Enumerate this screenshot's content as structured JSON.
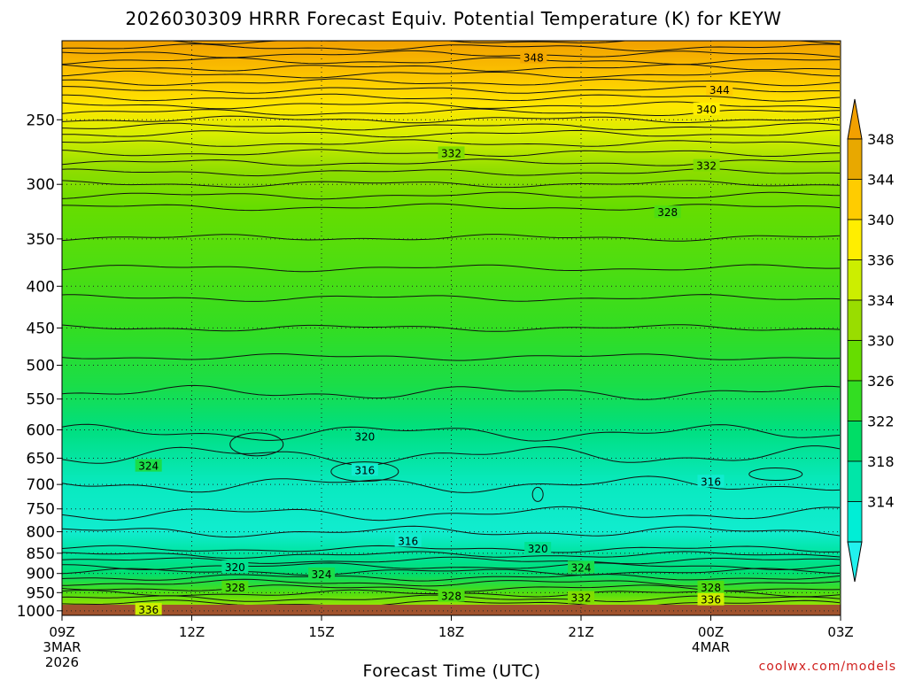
{
  "title": "2026030309 HRRR Forecast Equiv. Potential Temperature (K) for KEYW",
  "credit": "coolwx.com/models",
  "chart_data": {
    "type": "heatmap",
    "title": "2026030309 HRRR Forecast Equiv. Potential Temperature (K) for KEYW",
    "xlabel": "Forecast Time (UTC)",
    "ylabel": "",
    "x_ticks": [
      {
        "hour": 0,
        "label": "09Z",
        "sub": [
          "3MAR",
          "2026"
        ]
      },
      {
        "hour": 3,
        "label": "12Z",
        "sub": []
      },
      {
        "hour": 6,
        "label": "15Z",
        "sub": []
      },
      {
        "hour": 9,
        "label": "18Z",
        "sub": []
      },
      {
        "hour": 12,
        "label": "21Z",
        "sub": []
      },
      {
        "hour": 15,
        "label": "00Z",
        "sub": [
          "4MAR"
        ]
      },
      {
        "hour": 18,
        "label": "03Z",
        "sub": []
      }
    ],
    "xlim_hours": [
      0,
      18
    ],
    "y_ticks": [
      250,
      300,
      350,
      400,
      450,
      500,
      550,
      600,
      650,
      700,
      750,
      800,
      850,
      900,
      950,
      1000
    ],
    "ylim_hpa": [
      200,
      1013
    ],
    "y_scale": "log-pressure",
    "grid": "dotted",
    "colorbar": {
      "ticks": [
        348,
        344,
        340,
        336,
        334,
        330,
        326,
        322,
        318,
        314
      ],
      "colors": [
        "#e8a800",
        "#ffcc00",
        "#ffee00",
        "#ccee00",
        "#99dd00",
        "#66dd00",
        "#33dd22",
        "#00dd66",
        "#00e6a8",
        "#00eed6"
      ],
      "top_color": "#f2a000",
      "bottom_color": "#22f2ee"
    },
    "ground_color": "#a0522d",
    "profile": [
      {
        "p": 200,
        "theta_e": 350
      },
      {
        "p": 220,
        "theta_e": 345
      },
      {
        "p": 240,
        "theta_e": 341
      },
      {
        "p": 260,
        "theta_e": 337
      },
      {
        "p": 290,
        "theta_e": 333
      },
      {
        "p": 320,
        "theta_e": 330
      },
      {
        "p": 380,
        "theta_e": 328
      },
      {
        "p": 450,
        "theta_e": 326
      },
      {
        "p": 530,
        "theta_e": 324
      },
      {
        "p": 600,
        "theta_e": 321
      },
      {
        "p": 700,
        "theta_e": 317
      },
      {
        "p": 800,
        "theta_e": 316
      },
      {
        "p": 850,
        "theta_e": 319
      },
      {
        "p": 900,
        "theta_e": 322
      },
      {
        "p": 950,
        "theta_e": 328
      },
      {
        "p": 1000,
        "theta_e": 335
      }
    ],
    "contour_labels": [
      {
        "text": "348",
        "hour": 10.9,
        "p": 210
      },
      {
        "text": "344",
        "hour": 15.2,
        "p": 230
      },
      {
        "text": "340",
        "hour": 14.9,
        "p": 243
      },
      {
        "text": "332",
        "hour": 9.0,
        "p": 275
      },
      {
        "text": "332",
        "hour": 14.9,
        "p": 285
      },
      {
        "text": "328",
        "hour": 14.0,
        "p": 325
      },
      {
        "text": "324",
        "hour": 2.0,
        "p": 665
      },
      {
        "text": "320",
        "hour": 7.0,
        "p": 612
      },
      {
        "text": "316",
        "hour": 7.0,
        "p": 673
      },
      {
        "text": "316",
        "hour": 15.0,
        "p": 695
      },
      {
        "text": "316",
        "hour": 8.0,
        "p": 822
      },
      {
        "text": "320",
        "hour": 11.0,
        "p": 840
      },
      {
        "text": "320",
        "hour": 4.0,
        "p": 885
      },
      {
        "text": "324",
        "hour": 12.0,
        "p": 886
      },
      {
        "text": "324",
        "hour": 6.0,
        "p": 903
      },
      {
        "text": "328",
        "hour": 4.0,
        "p": 937
      },
      {
        "text": "328",
        "hour": 15.0,
        "p": 937
      },
      {
        "text": "328",
        "hour": 9.0,
        "p": 960
      },
      {
        "text": "332",
        "hour": 12.0,
        "p": 965
      },
      {
        "text": "336",
        "hour": 15.0,
        "p": 970
      },
      {
        "text": "336",
        "hour": 2.0,
        "p": 998
      }
    ]
  }
}
